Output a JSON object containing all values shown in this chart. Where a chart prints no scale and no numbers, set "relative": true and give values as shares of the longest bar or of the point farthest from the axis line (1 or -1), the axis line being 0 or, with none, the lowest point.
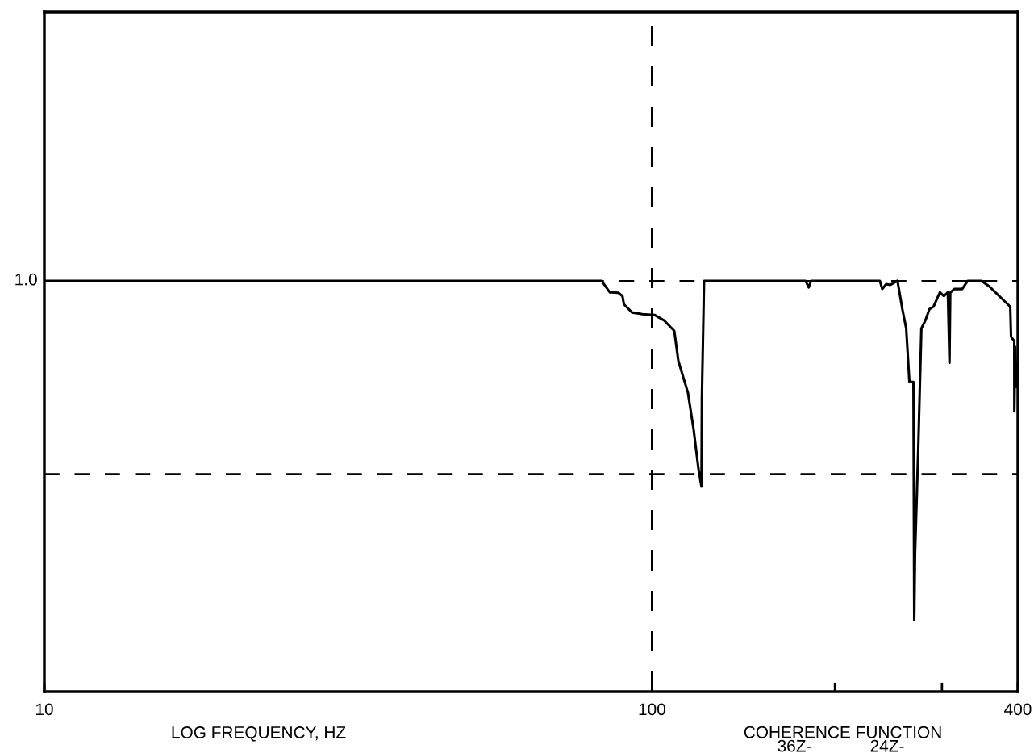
{
  "chart_data": {
    "type": "line",
    "relative": true,
    "log": "x",
    "xlabel": "LOG FREQUENCY, HZ",
    "xlim": [
      10,
      400
    ],
    "xticks": [
      10,
      100,
      {
        "value": 200,
        "label": null
      },
      {
        "value": 300,
        "label": null
      },
      400
    ],
    "grid": false,
    "marker": "none",
    "line_style": "solid",
    "series": [
      {
        "color": "#000000",
        "x": [
          10,
          82.6,
          85.2,
          88.0,
          89.4,
          89.9,
          92.7,
          96.4,
          100.9,
          104.6,
          108.8,
          110.5,
          114.6,
          117.1,
          119.2,
          120.6,
          120.8,
          121.8,
          164.9,
          178.9,
          181.1,
          182.7,
          237.1,
          239.3,
          242.9,
          246.7,
          253.5,
          258.2,
          262.0,
          265.2,
          269.3,
          270.1,
          270.9,
          274.3,
          277.5,
          281.8,
          286.1,
          290.5,
          297.7,
          302.2,
          306.8,
          308.7,
          309.6,
          314.3,
          323.9,
          330.8,
          348.4,
          359.2,
          388.6,
          389.8,
          394.6,
          394.7,
          396,
          398,
          400
        ],
        "values": [
          1.0,
          1.0,
          0.972,
          0.971,
          0.963,
          0.943,
          0.923,
          0.919,
          0.917,
          0.904,
          0.878,
          0.805,
          0.727,
          0.637,
          0.544,
          0.499,
          0.715,
          1.0,
          1.0,
          1.0,
          0.984,
          1.0,
          1.0,
          0.98,
          0.992,
          0.99,
          1.0,
          0.931,
          0.884,
          0.754,
          0.754,
          0.175,
          0.334,
          0.597,
          0.884,
          0.904,
          0.931,
          0.937,
          0.972,
          0.963,
          0.972,
          0.8,
          0.971,
          0.98,
          0.98,
          1.0,
          1.0,
          0.986,
          0.937,
          0.864,
          0.853,
          0.682,
          0.839,
          0.741,
          0.8
        ]
      }
    ],
    "ref_lines": [
      {
        "axis": "y",
        "value": 1.0,
        "label": "1.0",
        "line_style": "dashed",
        "color": "#000000"
      },
      {
        "axis": "y",
        "value": 0.53,
        "line_style": "dashed",
        "color": "#000000"
      },
      {
        "axis": "x",
        "value": 100,
        "line_style": "dashed",
        "color": "#000000"
      }
    ],
    "annotations": [
      "COHERENCE FUNCTION",
      "36Z-",
      "24Z-"
    ]
  }
}
